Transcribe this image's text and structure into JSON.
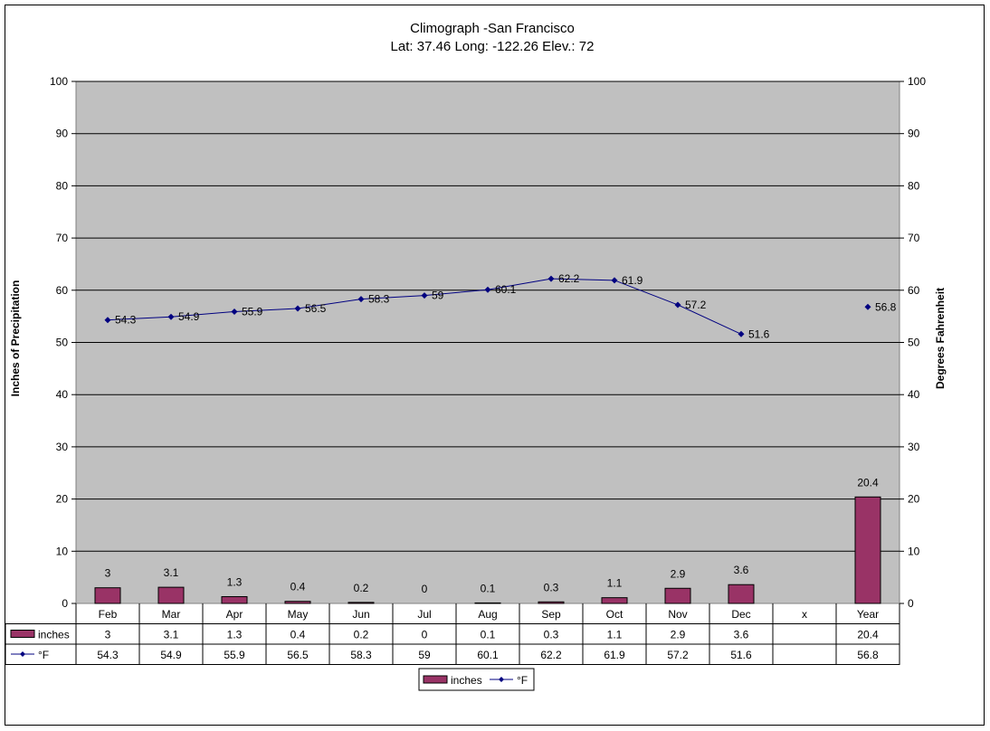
{
  "chart_data": {
    "type": "bar",
    "title": "Climograph -San Francisco",
    "subtitle": "Lat: 37.46 Long: -122.26 Elev.: 72",
    "categories": [
      "Feb",
      "Mar",
      "Apr",
      "May",
      "Jun",
      "Jul",
      "Aug",
      "Sep",
      "Oct",
      "Nov",
      "Dec",
      "x",
      "Year"
    ],
    "ylabel": "Inches of Precipitation",
    "y2label": "Degrees Fahrenheit",
    "ylim": [
      0,
      100
    ],
    "y2lim": [
      0,
      100
    ],
    "yticks": [
      0,
      10,
      20,
      30,
      40,
      50,
      60,
      70,
      80,
      90,
      100
    ],
    "grid": true,
    "legend_placement": "bottom",
    "plot_background": "#c0c0c0",
    "series": [
      {
        "name": "inches",
        "type": "bar",
        "axis": "left",
        "color": "#993366",
        "values": [
          3,
          3.1,
          1.3,
          0.4,
          0.2,
          0,
          0.1,
          0.3,
          1.1,
          2.9,
          3.6,
          null,
          20.4
        ],
        "labels": [
          "3",
          "3.1",
          "1.3",
          "0.4",
          "0.2",
          "0",
          "0.1",
          "0.3",
          "1.1",
          "2.9",
          "3.6",
          "",
          "20.4"
        ]
      },
      {
        "name": "°F",
        "type": "line",
        "axis": "right",
        "color": "#000080",
        "values": [
          54.3,
          54.9,
          55.9,
          56.5,
          58.3,
          59,
          60.1,
          62.2,
          61.9,
          57.2,
          51.6,
          null,
          56.8
        ],
        "labels": [
          "54.3",
          "54.9",
          "55.9",
          "56.5",
          "58.3",
          "59",
          "60.1",
          "62.2",
          "61.9",
          "57.2",
          "51.6",
          "",
          "56.8"
        ]
      }
    ],
    "data_table": {
      "rows": [
        {
          "series": "inches",
          "cells": [
            "3",
            "3.1",
            "1.3",
            "0.4",
            "0.2",
            "0",
            "0.1",
            "0.3",
            "1.1",
            "2.9",
            "3.6",
            "",
            "20.4"
          ]
        },
        {
          "series": "°F",
          "cells": [
            "54.3",
            "54.9",
            "55.9",
            "56.5",
            "58.3",
            "59",
            "60.1",
            "62.2",
            "61.9",
            "57.2",
            "51.6",
            "",
            "56.8"
          ]
        }
      ]
    },
    "legend": [
      "inches",
      "°F"
    ]
  }
}
